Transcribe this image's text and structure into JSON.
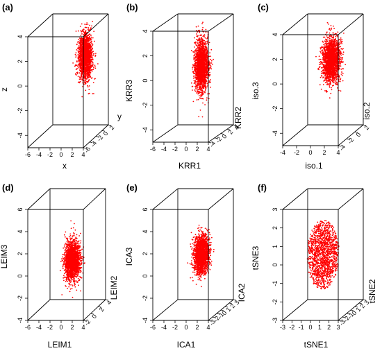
{
  "chart_data": [
    {
      "type": "scatter",
      "panel_label": "(a)",
      "x_label": "x",
      "y_label": "y",
      "z_label": "z",
      "x_ticks": [
        "-6",
        "-4",
        "-2",
        "0",
        "2",
        "4"
      ],
      "y_ticks": [
        "-6",
        "-4",
        "-2",
        "0",
        "2"
      ],
      "z_ticks": [
        "-4",
        "-2",
        "0",
        "2",
        "4"
      ],
      "xlim": [
        -6,
        4
      ],
      "ylim": [
        -6,
        2
      ],
      "zlim": [
        -5,
        4
      ],
      "point_color": "#ff0000",
      "cloud": {
        "x_center": 1.0,
        "x_spread": 0.9,
        "y_center": 0.0,
        "y_spread": 0.8,
        "z_center": 1.0,
        "z_spread": 1.2,
        "n_points": 2000,
        "shape": "blob"
      }
    },
    {
      "type": "scatter",
      "panel_label": "(b)",
      "x_label": "KRR1",
      "y_label": "KRR2",
      "z_label": "KRR3",
      "x_ticks": [
        "-6",
        "-4",
        "-2",
        "0",
        "2",
        "4"
      ],
      "y_ticks": [
        "-4",
        "-2",
        "0",
        "2",
        "4"
      ],
      "z_ticks": [
        "-4",
        "-2",
        "0",
        "2",
        "4"
      ],
      "xlim": [
        -6,
        4
      ],
      "ylim": [
        -4,
        4
      ],
      "zlim": [
        -5,
        4
      ],
      "point_color": "#ff0000",
      "cloud": {
        "x_center": 0.5,
        "x_spread": 0.9,
        "y_center": 0.0,
        "y_spread": 0.9,
        "z_center": 0.5,
        "z_spread": 1.4,
        "n_points": 2000,
        "shape": "blob"
      }
    },
    {
      "type": "scatter",
      "panel_label": "(c)",
      "x_label": "iso.1",
      "y_label": "iso.2",
      "z_label": "iso.3",
      "x_ticks": [
        "-4",
        "-2",
        "0",
        "2",
        "4"
      ],
      "y_ticks": [
        "-4",
        "-2",
        "0",
        "2"
      ],
      "z_ticks": [
        "-4",
        "-2",
        "0",
        "2",
        "4"
      ],
      "xlim": [
        -4,
        4
      ],
      "ylim": [
        -4,
        2
      ],
      "zlim": [
        -5,
        4
      ],
      "point_color": "#ff0000",
      "cloud": {
        "x_center": 0.6,
        "x_spread": 1.0,
        "y_center": 0.0,
        "y_spread": 0.8,
        "z_center": 0.8,
        "z_spread": 1.2,
        "n_points": 2000,
        "shape": "blob"
      }
    },
    {
      "type": "scatter",
      "panel_label": "(d)",
      "x_label": "LEIM1",
      "y_label": "LEIM2",
      "z_label": "LEIM3",
      "x_ticks": [
        "-6",
        "-4",
        "-2",
        "0",
        "2",
        "4"
      ],
      "y_ticks": [
        "-2",
        "0",
        "2",
        "4"
      ],
      "z_ticks": [
        "-4",
        "-2",
        "0",
        "2",
        "4",
        "6"
      ],
      "xlim": [
        -6,
        4
      ],
      "ylim": [
        -2,
        4
      ],
      "zlim": [
        -4,
        6
      ],
      "point_color": "#ff0000",
      "cloud": {
        "x_center": 0.0,
        "x_spread": 1.0,
        "y_center": 1.0,
        "y_spread": 0.8,
        "z_center": 0.5,
        "z_spread": 1.2,
        "n_points": 2000,
        "shape": "blob"
      }
    },
    {
      "type": "scatter",
      "panel_label": "(e)",
      "x_label": "ICA1",
      "y_label": "ICA2",
      "z_label": "ICA3",
      "x_ticks": [
        "-6",
        "-4",
        "-2",
        "0",
        "2",
        "4"
      ],
      "y_ticks": [
        "-3",
        "-2",
        "-1",
        "0",
        "1",
        "2",
        "3"
      ],
      "z_ticks": [
        "-4",
        "-2",
        "0",
        "2",
        "4",
        "6"
      ],
      "xlim": [
        -6,
        4
      ],
      "ylim": [
        -3,
        3
      ],
      "zlim": [
        -4,
        6
      ],
      "point_color": "#ff0000",
      "cloud": {
        "x_center": 0.5,
        "x_spread": 0.9,
        "y_center": 0.0,
        "y_spread": 0.9,
        "z_center": 1.0,
        "z_spread": 1.1,
        "n_points": 2000,
        "shape": "blob"
      }
    },
    {
      "type": "scatter",
      "panel_label": "(f)",
      "x_label": "tSNE1",
      "y_label": "tSNE2",
      "z_label": "tSNE3",
      "x_ticks": [
        "-3",
        "-2",
        "-1",
        "0",
        "1",
        "2",
        "3"
      ],
      "y_ticks": [
        "-3",
        "-2",
        "-1",
        "0",
        "1",
        "2",
        "3"
      ],
      "z_ticks": [
        "-3",
        "-2",
        "-1",
        "0",
        "1",
        "2",
        "3"
      ],
      "xlim": [
        -3,
        3
      ],
      "ylim": [
        -3,
        3
      ],
      "zlim": [
        -3,
        3
      ],
      "point_color": "#ff0000",
      "cloud": {
        "x_center": 0.0,
        "x_spread": 1.5,
        "y_center": 0.0,
        "y_spread": 1.5,
        "z_center": 0.0,
        "z_spread": 1.5,
        "n_points": 1500,
        "shape": "ellipsoid"
      }
    }
  ]
}
